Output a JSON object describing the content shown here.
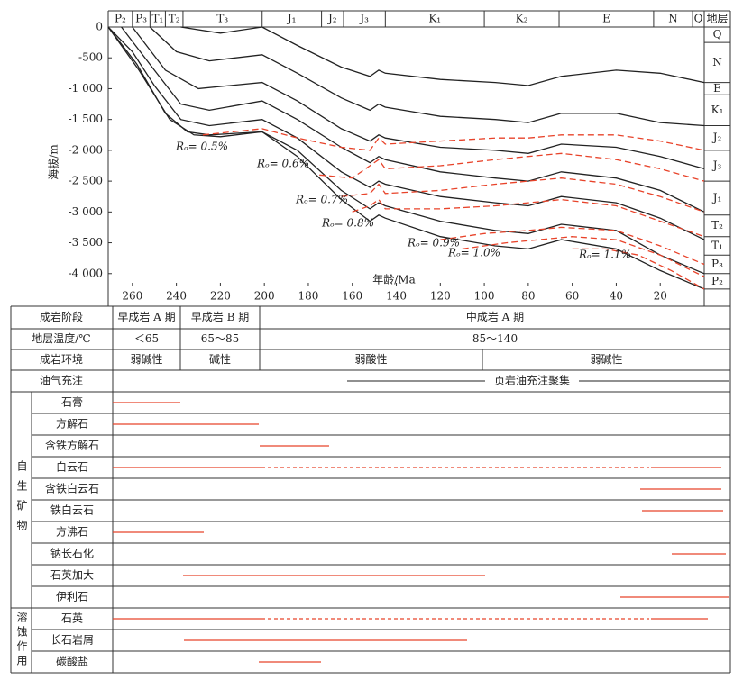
{
  "chart_data": {
    "type": "line",
    "ylabel": "海拔/m",
    "xlabel": "年龄/Ma",
    "xlim": [
      271,
      0
    ],
    "ylim": [
      -4500,
      0
    ],
    "xticks": [
      260,
      240,
      220,
      200,
      180,
      160,
      140,
      120,
      100,
      80,
      60,
      40,
      20
    ],
    "yticks": [
      0,
      -500,
      {
        "value": -1000,
        "label": "-1 000"
      },
      {
        "value": -1500,
        "label": "-1 500"
      },
      {
        "value": -2000,
        "label": "-2 000"
      },
      {
        "value": -2500,
        "label": "-2 500"
      },
      {
        "value": -3000,
        "label": "-3 000"
      },
      {
        "value": -3500,
        "label": "-3 500"
      },
      {
        "value": -4000,
        "label": "-4 000"
      }
    ],
    "strata": {
      "names": [
        "P₂",
        "P₃",
        "T₁",
        "T₂",
        "T₃",
        "J₁",
        "J₂",
        "J₃",
        "K₁",
        "K₂",
        "E",
        "N",
        "Q"
      ],
      "bounds": [
        271,
        260,
        252,
        245,
        237,
        201,
        174,
        164,
        145,
        100,
        66,
        23,
        5.3,
        0
      ]
    },
    "formation_column": {
      "title": "地层",
      "names": [
        "Q",
        "N",
        "E",
        "K₁",
        "J₂",
        "J₃",
        "J₁",
        "T₂",
        "T₁",
        "P₃",
        "P₂"
      ],
      "depth_bounds": [
        0,
        -250,
        -900,
        -1100,
        -1600,
        -2000,
        -2500,
        -3050,
        -3400,
        -3700,
        -4000,
        -4250
      ]
    },
    "series": [
      {
        "color": "#222222",
        "x": [
          238,
          220,
          201,
          185,
          165,
          152,
          148,
          145,
          120,
          95,
          80,
          65,
          40,
          20,
          0
        ],
        "values": [
          0,
          -100,
          0,
          -300,
          -650,
          -800,
          -700,
          -750,
          -850,
          -900,
          -950,
          -800,
          -700,
          -750,
          -900
        ]
      },
      {
        "color": "#222222",
        "x": [
          252,
          240,
          225,
          201,
          185,
          165,
          152,
          148,
          145,
          120,
          95,
          80,
          65,
          40,
          20,
          0
        ],
        "values": [
          0,
          -400,
          -550,
          -450,
          -750,
          -1150,
          -1350,
          -1250,
          -1300,
          -1450,
          -1500,
          -1550,
          -1400,
          -1400,
          -1550,
          -1600
        ]
      },
      {
        "color": "#222222",
        "x": [
          260,
          245,
          230,
          201,
          185,
          165,
          152,
          148,
          145,
          120,
          95,
          80,
          65,
          40,
          20,
          0
        ],
        "values": [
          0,
          -700,
          -1000,
          -900,
          -1200,
          -1650,
          -1850,
          -1750,
          -1800,
          -1950,
          -2000,
          -2050,
          -1900,
          -1950,
          -2100,
          -2300
        ]
      },
      {
        "color": "#222222",
        "x": [
          265,
          250,
          238,
          225,
          201,
          185,
          165,
          152,
          148,
          145,
          120,
          95,
          80,
          65,
          40,
          20,
          0
        ],
        "values": [
          0,
          -700,
          -1250,
          -1350,
          -1200,
          -1500,
          -1950,
          -2200,
          -2100,
          -2150,
          -2350,
          -2450,
          -2500,
          -2350,
          -2450,
          -2650,
          -3000
        ]
      },
      {
        "color": "#222222",
        "x": [
          271,
          260,
          250,
          238,
          225,
          201,
          185,
          165,
          152,
          148,
          145,
          120,
          95,
          80,
          65,
          40,
          20,
          0
        ],
        "values": [
          0,
          -400,
          -950,
          -1500,
          -1600,
          -1500,
          -1800,
          -2350,
          -2600,
          -2500,
          -2550,
          -2750,
          -2850,
          -2900,
          -2750,
          -2850,
          -3100,
          -3450
        ]
      },
      {
        "color": "#222222",
        "x": [
          271,
          258,
          245,
          235,
          225,
          201,
          185,
          165,
          152,
          148,
          145,
          120,
          95,
          80,
          65,
          40,
          20,
          0
        ],
        "values": [
          0,
          -600,
          -1400,
          -1700,
          -1750,
          -1700,
          -2000,
          -2650,
          -2950,
          -2850,
          -2900,
          -3150,
          -3300,
          -3350,
          -3200,
          -3300,
          -3700,
          -4000
        ]
      },
      {
        "color": "#222222",
        "x": [
          271,
          257,
          243,
          232,
          220,
          201,
          185,
          165,
          152,
          148,
          145,
          120,
          95,
          80,
          65,
          40,
          20,
          0
        ],
        "values": [
          0,
          -700,
          -1500,
          -1750,
          -1780,
          -1700,
          -2100,
          -2800,
          -3150,
          -3050,
          -3100,
          -3400,
          -3550,
          -3600,
          -3450,
          -3600,
          -3950,
          -4250
        ]
      },
      {
        "color": "#e8432a",
        "dashed": true,
        "label": "Rₒ= 0.5%",
        "x": [
          228,
          201,
          185,
          165,
          152,
          148,
          145,
          120,
          95,
          80,
          65,
          40,
          20,
          0
        ],
        "values": [
          -1750,
          -1650,
          -1800,
          -1950,
          -2000,
          -1800,
          -1900,
          -1850,
          -1800,
          -1800,
          -1750,
          -1750,
          -1850,
          -2000
        ]
      },
      {
        "color": "#e8432a",
        "dashed": true,
        "label": "Rₒ= 0.6%",
        "x": [
          175,
          160,
          152,
          148,
          145,
          120,
          95,
          80,
          65,
          40,
          20,
          0
        ],
        "values": [
          -2400,
          -2450,
          -2250,
          -2150,
          -2300,
          -2250,
          -2150,
          -2100,
          -2050,
          -2150,
          -2300,
          -2500
        ]
      },
      {
        "color": "#e8432a",
        "dashed": true,
        "label": "Rₒ= 0.7%",
        "x": [
          165,
          152,
          148,
          145,
          120,
          95,
          80,
          65,
          40,
          20,
          0
        ],
        "values": [
          -2750,
          -2700,
          -2550,
          -2700,
          -2650,
          -2550,
          -2500,
          -2450,
          -2550,
          -2750,
          -3000
        ]
      },
      {
        "color": "#e8432a",
        "dashed": true,
        "label": "Rₒ= 0.8%",
        "x": [
          160,
          152,
          148,
          145,
          120,
          95,
          80,
          65,
          40,
          20,
          0
        ],
        "values": [
          -3000,
          -2900,
          -2800,
          -2950,
          -2950,
          -2900,
          -2850,
          -2800,
          -2900,
          -3150,
          -3400
        ]
      },
      {
        "color": "#e8432a",
        "dashed": true,
        "label": "Rₒ= 0.9%",
        "x": [
          120,
          100,
          80,
          65,
          40,
          20,
          0
        ],
        "values": [
          -3450,
          -3350,
          -3300,
          -3250,
          -3300,
          -3550,
          -3850
        ]
      },
      {
        "color": "#e8432a",
        "dashed": true,
        "label": "Rₒ= 1.0%",
        "x": [
          110,
          90,
          75,
          60,
          40,
          20,
          0
        ],
        "values": [
          -3600,
          -3500,
          -3450,
          -3400,
          -3450,
          -3700,
          -4050
        ]
      },
      {
        "color": "#e8432a",
        "dashed": true,
        "label": "Rₒ= 1.1%",
        "x": [
          60,
          45,
          30,
          15,
          0
        ],
        "values": [
          -3600,
          -3600,
          -3700,
          -3950,
          -4250
        ]
      }
    ]
  },
  "table": {
    "header_rows": [
      {
        "label": "成岩阶段",
        "cells": [
          "早成岩 A 期",
          "早成岩 B 期",
          "中成岩 A 期"
        ]
      },
      {
        "label": "地层温度/℃",
        "cells": [
          "＜65",
          "65～85",
          "85～140"
        ]
      },
      {
        "label": "成岩环境",
        "cells": [
          "弱碱性",
          "碱性",
          "弱酸性",
          "弱碱性"
        ]
      },
      {
        "label": "油气充注",
        "cells": [
          "页岩油充注聚集"
        ]
      }
    ],
    "groups": [
      {
        "label": "自生矿物",
        "rows": [
          "石膏",
          "方解石",
          "含铁方解石",
          "白云石",
          "含铁白云石",
          "铁白云石",
          "方沸石",
          "钠长石化",
          "石英加大",
          "伊利石"
        ]
      },
      {
        "label": "溶蚀作用",
        "rows": [
          "石英",
          "长石岩屑",
          "碳酸盐"
        ]
      }
    ]
  }
}
